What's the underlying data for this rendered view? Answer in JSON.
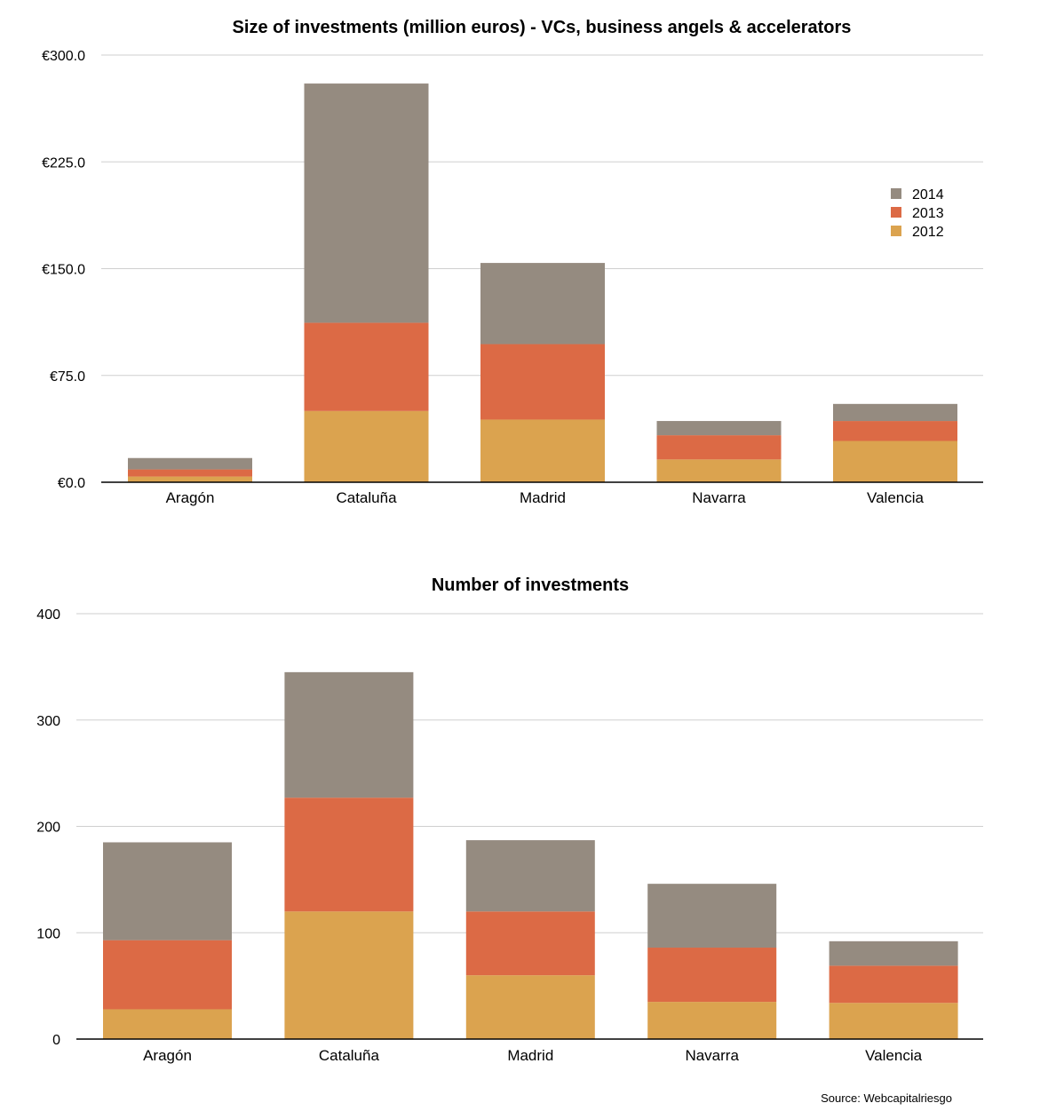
{
  "colors": {
    "2014": "#958b80",
    "2013": "#dc6a45",
    "2012": "#dba34f",
    "grid": "#cfcfcf",
    "axis": "#000000"
  },
  "chart_data": [
    {
      "type": "bar",
      "stacked": true,
      "title": "Size of investments (million euros) - VCs, business angels & accelerators",
      "categories": [
        "Aragón",
        "Cataluña",
        "Madrid",
        "Navarra",
        "Valencia"
      ],
      "series": [
        {
          "name": "2012",
          "values": [
            4,
            50,
            44,
            16,
            29
          ]
        },
        {
          "name": "2013",
          "values": [
            5,
            62,
            53,
            17,
            14
          ]
        },
        {
          "name": "2014",
          "values": [
            8,
            168,
            57,
            10,
            12
          ]
        }
      ],
      "yticks": [
        "€0.0",
        "€75.0",
        "€150.0",
        "€225.0",
        "€300.0"
      ],
      "ylim": [
        0,
        300
      ],
      "grid": true,
      "legend": {
        "position": "top-right",
        "entries": [
          "2014",
          "2013",
          "2012"
        ]
      }
    },
    {
      "type": "bar",
      "stacked": true,
      "title": "Number of investments",
      "categories": [
        "Aragón",
        "Cataluña",
        "Madrid",
        "Navarra",
        "Valencia"
      ],
      "series": [
        {
          "name": "2012",
          "values": [
            28,
            120,
            60,
            35,
            34
          ]
        },
        {
          "name": "2013",
          "values": [
            65,
            107,
            60,
            51,
            35
          ]
        },
        {
          "name": "2014",
          "values": [
            92,
            118,
            67,
            60,
            23
          ]
        }
      ],
      "yticks": [
        "0",
        "100",
        "200",
        "300",
        "400"
      ],
      "ylim": [
        0,
        400
      ],
      "grid": true,
      "legend": null
    }
  ],
  "source": "Source: Webcapitalriesgo"
}
